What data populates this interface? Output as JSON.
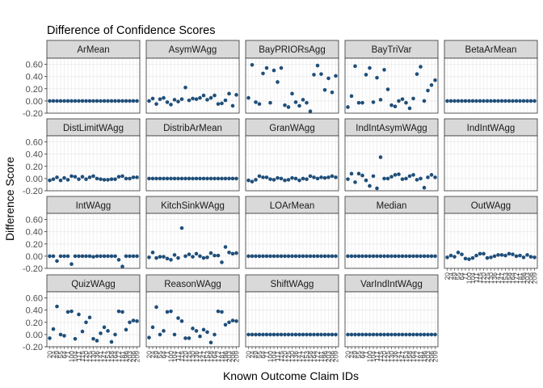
{
  "chart_data": {
    "type": "scatter",
    "title": "Difference of Confidence Scores",
    "xlabel": "Known Outcome Claim IDs",
    "ylabel": "Difference Score",
    "ylim": [
      -0.2,
      0.7
    ],
    "y_ticks": [
      -0.2,
      0.0,
      0.2,
      0.4,
      0.6
    ],
    "y_tick_labels": [
      "-0.20",
      "0.00",
      "0.20",
      "0.40",
      "0.60"
    ],
    "x_tick_labels": [
      "20",
      "24",
      "49",
      "55",
      "64",
      "71",
      "100",
      "104",
      "111",
      "115",
      "120",
      "125",
      "130",
      "136",
      "141",
      "147",
      "153",
      "158",
      "164",
      "172",
      "181",
      "196",
      "203",
      "206",
      "209"
    ],
    "facet_columns": 5,
    "grid": true,
    "point_color": "#1f4e79",
    "panel_background": "#ffffff",
    "grid_color": "#ebebeb",
    "strip_background": "#d9d9d9",
    "panel_border": "#333333",
    "facets": [
      {
        "name": "ArMean",
        "values": [
          0,
          0,
          0,
          0,
          0,
          0,
          0,
          0,
          0,
          0,
          0,
          0,
          0,
          0,
          0,
          0,
          0,
          0,
          0,
          0,
          0,
          0,
          0,
          0,
          0
        ]
      },
      {
        "name": "AsymWAgg",
        "values": [
          0,
          0.04,
          -0.05,
          0.03,
          0.05,
          -0.02,
          -0.06,
          0.02,
          -0.01,
          0.03,
          0.22,
          0.01,
          0.04,
          0.03,
          0.05,
          0.09,
          0.02,
          0.05,
          0.09,
          -0.05,
          -0.04,
          0.01,
          0.12,
          -0.08,
          0.1
        ]
      },
      {
        "name": "BayPRIORsAgg",
        "values": [
          0.05,
          0.59,
          -0.02,
          -0.05,
          0.45,
          0.54,
          -0.03,
          0.5,
          0.31,
          0.54,
          -0.07,
          -0.1,
          0.12,
          -0.02,
          -0.08,
          0.02,
          -0.03,
          -0.17,
          0.43,
          0.58,
          0.44,
          0.18,
          0.37,
          0.14,
          0.41
        ]
      },
      {
        "name": "BayTriVar",
        "values": [
          -0.1,
          0.08,
          0.57,
          -0.03,
          -0.03,
          0.43,
          0.54,
          -0.02,
          0.38,
          0.02,
          0.51,
          0.19,
          -0.07,
          -0.09,
          0.0,
          0.03,
          -0.03,
          -0.12,
          0.04,
          0.44,
          0.56,
          0.0,
          0.17,
          0.26,
          0.34
        ]
      },
      {
        "name": "BetaArMean",
        "values": [
          0,
          0,
          0,
          0,
          0,
          0,
          0,
          0,
          0,
          0,
          0,
          0,
          0,
          0,
          0,
          0,
          0,
          0,
          0,
          0,
          0,
          0,
          0,
          0,
          0
        ]
      },
      {
        "name": "DistLimitWAgg",
        "values": [
          -0.03,
          -0.01,
          0.02,
          -0.03,
          0.01,
          -0.02,
          0.04,
          0.03,
          -0.01,
          0.03,
          -0.01,
          0.02,
          0.04,
          0.0,
          -0.01,
          -0.02,
          -0.02,
          -0.01,
          -0.01,
          0.03,
          0.04,
          0.0,
          0.0,
          0.02,
          0.02
        ]
      },
      {
        "name": "DistribArMean",
        "values": [
          0,
          0,
          0,
          0,
          0,
          0,
          0,
          0,
          0,
          0,
          0,
          0,
          0,
          0,
          0,
          0,
          0,
          0,
          0,
          0,
          0,
          0,
          0,
          0,
          0
        ]
      },
      {
        "name": "GranWAgg",
        "values": [
          -0.03,
          -0.05,
          -0.02,
          0.04,
          0.02,
          0.02,
          -0.01,
          -0.02,
          0.01,
          0.0,
          -0.03,
          -0.02,
          0.01,
          0.0,
          -0.03,
          0.0,
          -0.01,
          0.04,
          0.02,
          0.0,
          0.02,
          0.01,
          0.02,
          0.04,
          0.02
        ]
      },
      {
        "name": "IndIntAsymWAgg",
        "values": [
          -0.01,
          0.08,
          -0.06,
          0.08,
          0.05,
          -0.03,
          -0.12,
          0.04,
          -0.16,
          0.35,
          0.0,
          0.0,
          0.03,
          0.06,
          0.07,
          -0.01,
          0.0,
          0.04,
          0.06,
          -0.02,
          0.0,
          -0.15,
          0.02,
          0.06,
          0.02
        ]
      },
      {
        "name": "IndIntWAgg",
        "values": []
      },
      {
        "name": "IntWAgg",
        "values": [
          0,
          0,
          -0.08,
          0,
          0,
          0,
          -0.13,
          0,
          0,
          0,
          0,
          0,
          -0.01,
          0,
          0,
          0,
          0,
          0,
          0,
          -0.06,
          -0.17,
          0,
          0,
          0,
          0
        ]
      },
      {
        "name": "KitchSinkWAgg",
        "values": [
          -0.02,
          0.06,
          -0.03,
          -0.01,
          -0.01,
          -0.04,
          -0.06,
          0.02,
          -0.03,
          0.46,
          0.0,
          0.03,
          -0.01,
          0.04,
          0.0,
          -0.03,
          -0.02,
          0.05,
          0.01,
          0.01,
          -0.1,
          0.15,
          0.06,
          0.04,
          0.05
        ]
      },
      {
        "name": "LOArMean",
        "values": [
          0,
          0,
          0,
          0,
          0,
          0,
          0,
          0,
          0,
          0,
          0,
          0,
          0,
          0,
          0,
          0,
          0,
          0,
          0,
          0,
          0,
          0,
          0,
          0,
          0
        ]
      },
      {
        "name": "Median",
        "values": [
          0,
          0,
          0,
          0,
          0,
          0,
          0,
          0,
          0,
          0,
          0,
          0,
          0,
          0,
          0,
          0,
          0,
          0,
          0,
          0,
          0,
          0,
          0,
          0,
          0
        ]
      },
      {
        "name": "OutWAgg",
        "values": [
          -0.02,
          0.01,
          -0.01,
          0.06,
          0.03,
          -0.04,
          -0.05,
          -0.03,
          0.01,
          0.04,
          0.04,
          -0.03,
          -0.02,
          0.0,
          0.02,
          0.02,
          0.01,
          0.04,
          0.03,
          0.0,
          0.01,
          -0.02,
          0.02,
          -0.01,
          -0.02
        ]
      },
      {
        "name": "QuizWAgg",
        "values": [
          -0.06,
          0.09,
          0.46,
          0.0,
          -0.02,
          0.37,
          0.38,
          -0.07,
          0.33,
          0.05,
          0.2,
          0.28,
          -0.07,
          -0.1,
          0.02,
          0.12,
          0.06,
          -0.12,
          0.0,
          0.38,
          0.37,
          0.08,
          0.2,
          0.23,
          0.22
        ]
      },
      {
        "name": "ReasonWAgg",
        "values": [
          -0.05,
          0.12,
          0.45,
          0.0,
          0.06,
          0.37,
          0.38,
          0.0,
          0.27,
          0.22,
          -0.06,
          -0.06,
          0.1,
          0.06,
          -0.03,
          0.08,
          0.04,
          -0.13,
          0.0,
          0.38,
          0.37,
          0.16,
          0.2,
          0.23,
          0.22
        ]
      },
      {
        "name": "ShiftWAgg",
        "values": [
          0,
          0,
          0,
          0,
          0,
          0,
          0,
          0,
          0,
          0,
          0,
          0,
          0,
          0,
          0,
          0,
          0,
          0,
          0,
          0,
          0,
          0,
          0,
          0,
          0
        ]
      },
      {
        "name": "VarIndIntWAgg",
        "values": [
          0,
          0,
          0,
          0,
          0,
          0,
          0,
          0,
          0,
          0,
          0,
          0,
          0,
          0,
          0,
          0,
          0,
          0,
          0,
          0,
          0,
          0,
          0,
          0,
          0
        ]
      }
    ]
  }
}
